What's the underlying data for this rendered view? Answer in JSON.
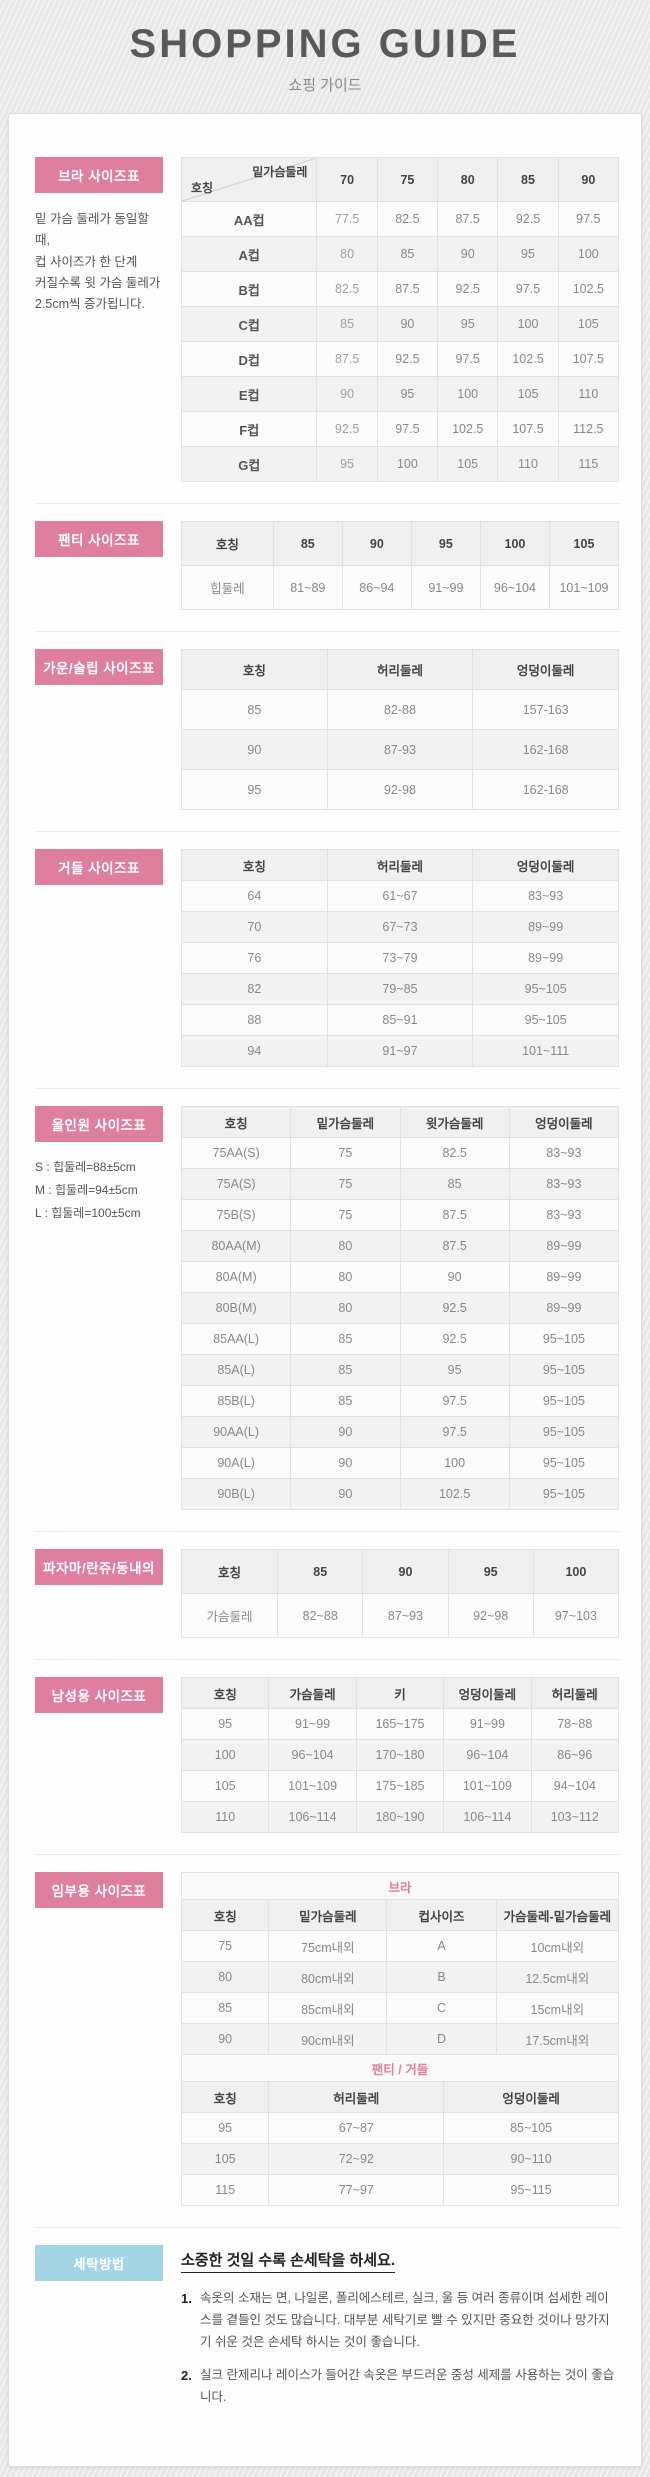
{
  "header": {
    "title": "SHOPPING GUIDE",
    "subtitle": "쇼핑 가이드"
  },
  "colors": {
    "accent_pink": "#dd7f9d",
    "accent_blue": "#a3d5e4",
    "page_bg": "#e9e9e9",
    "panel_bg": "#fdfdfd"
  },
  "sections": {
    "bra": {
      "label": "브라 사이즈표",
      "note": "밑 가슴 둘레가 동일할 때,\n컵 사이즈가 한 단계\n커질수록 윗 가슴 둘레가\n2.5cm씩 증가됩니다.",
      "corner_top": "밑가슴둘레",
      "corner_bottom": "호칭",
      "cols": [
        "70",
        "75",
        "80",
        "85",
        "90"
      ],
      "rows": [
        [
          "AA컵",
          "77.5",
          "82.5",
          "87.5",
          "92.5",
          "97.5"
        ],
        [
          "A컵",
          "80",
          "85",
          "90",
          "95",
          "100"
        ],
        [
          "B컵",
          "82.5",
          "87.5",
          "92.5",
          "97.5",
          "102.5"
        ],
        [
          "C컵",
          "85",
          "90",
          "95",
          "100",
          "105"
        ],
        [
          "D컵",
          "87.5",
          "92.5",
          "97.5",
          "102.5",
          "107.5"
        ],
        [
          "E컵",
          "90",
          "95",
          "100",
          "105",
          "110"
        ],
        [
          "F컵",
          "92.5",
          "97.5",
          "102.5",
          "107.5",
          "112.5"
        ],
        [
          "G컵",
          "95",
          "100",
          "105",
          "110",
          "115"
        ]
      ]
    },
    "panty": {
      "label": "팬티 사이즈표",
      "header": [
        [
          "호칭",
          "85",
          "90",
          "95",
          "100",
          "105"
        ]
      ],
      "rows": [
        [
          "힙둘레",
          "81~89",
          "86~94",
          "91~99",
          "96~104",
          "101~109"
        ]
      ]
    },
    "gown": {
      "label": "가운/슬립 사이즈표",
      "header": [
        [
          "호칭",
          "허리둘레",
          "엉덩이둘레"
        ]
      ],
      "rows": [
        [
          "85",
          "82-88",
          "157-163"
        ],
        [
          "90",
          "87-93",
          "162-168"
        ],
        [
          "95",
          "92-98",
          "162-168"
        ]
      ]
    },
    "girdle": {
      "label": "거들 사이즈표",
      "header": [
        [
          "호칭",
          "허리둘레",
          "엉덩이둘레"
        ]
      ],
      "rows": [
        [
          "64",
          "61~67",
          "83~93"
        ],
        [
          "70",
          "67~73",
          "89~99"
        ],
        [
          "76",
          "73~79",
          "89~99"
        ],
        [
          "82",
          "79~85",
          "95~105"
        ],
        [
          "88",
          "85~91",
          "95~105"
        ],
        [
          "94",
          "91~97",
          "101~111"
        ]
      ]
    },
    "allinone": {
      "label": "올인원 사이즈표",
      "notes": [
        "S : 힙둘레=88±5cm",
        "M : 힙둘레=94±5cm",
        "L : 힙둘레=100±5cm"
      ],
      "header": [
        [
          "호칭",
          "밑가슴둘레",
          "윗가슴둘레",
          "엉덩이둘레"
        ]
      ],
      "rows": [
        [
          "75AA(S)",
          "75",
          "82.5",
          "83~93"
        ],
        [
          "75A(S)",
          "75",
          "85",
          "83~93"
        ],
        [
          "75B(S)",
          "75",
          "87.5",
          "83~93"
        ],
        [
          "80AA(M)",
          "80",
          "87.5",
          "89~99"
        ],
        [
          "80A(M)",
          "80",
          "90",
          "89~99"
        ],
        [
          "80B(M)",
          "80",
          "92.5",
          "89~99"
        ],
        [
          "85AA(L)",
          "85",
          "92.5",
          "95~105"
        ],
        [
          "85A(L)",
          "85",
          "95",
          "95~105"
        ],
        [
          "85B(L)",
          "85",
          "97.5",
          "95~105"
        ],
        [
          "90AA(L)",
          "90",
          "97.5",
          "95~105"
        ],
        [
          "90A(L)",
          "90",
          "100",
          "95~105"
        ],
        [
          "90B(L)",
          "90",
          "102.5",
          "95~105"
        ]
      ]
    },
    "pajama": {
      "label": "파자마/란쥬/동내의",
      "header": [
        [
          "호칭",
          "85",
          "90",
          "95",
          "100"
        ]
      ],
      "rows": [
        [
          "가슴둘레",
          "82~88",
          "87~93",
          "92~98",
          "97~103"
        ]
      ]
    },
    "mens": {
      "label": "남성용 사이즈표",
      "header": [
        [
          "호칭",
          "가슴둘레",
          "키",
          "엉덩이둘레",
          "허리둘레"
        ]
      ],
      "rows": [
        [
          "95",
          "91~99",
          "165~175",
          "91~99",
          "78~88"
        ],
        [
          "100",
          "96~104",
          "170~180",
          "96~104",
          "86~96"
        ],
        [
          "105",
          "101~109",
          "175~185",
          "101~109",
          "94~104"
        ],
        [
          "110",
          "106~114",
          "180~190",
          "106~114",
          "103~112"
        ]
      ]
    },
    "maternity": {
      "label": "임부용 사이즈표",
      "bra_subtitle": "브라",
      "bra_header": [
        [
          "호칭",
          "밑가슴둘레",
          "컵사이즈",
          "가슴둘레-밑가슴둘레"
        ]
      ],
      "bra_rows": [
        [
          "75",
          "75cm내외",
          "A",
          "10cm내외"
        ],
        [
          "80",
          "80cm내외",
          "B",
          "12.5cm내외"
        ],
        [
          "85",
          "85cm내외",
          "C",
          "15cm내외"
        ],
        [
          "90",
          "90cm내외",
          "D",
          "17.5cm내외"
        ]
      ],
      "panty_subtitle": "팬티 / 거들",
      "panty_header": [
        [
          "호칭",
          "허리둘레",
          "엉덩이둘레"
        ]
      ],
      "panty_rows": [
        [
          "95",
          "67~87",
          "85~105"
        ],
        [
          "105",
          "72~92",
          "90~110"
        ],
        [
          "115",
          "77~97",
          "95~115"
        ]
      ]
    },
    "washing": {
      "label": "세탁방법",
      "title": "소중한 것일 수록 손세탁을 하세요.",
      "items": [
        {
          "num": "1.",
          "text": "속옷의 소재는 면, 나일론, 폴리에스테르, 실크, 울 등 여러 종류이며 섬세한 레이스를 곁들인 것도 많습니다. 대부분 세탁기로 빨 수 있지만 중요한 것이나 망가지기 쉬운 것은 손세탁 하시는 것이 좋습니다."
        },
        {
          "num": "2.",
          "text": "실크 란제리나 레이스가 들어간 속옷은 부드러운 중성 세제를 사용하는 것이 좋습니다."
        }
      ]
    }
  }
}
